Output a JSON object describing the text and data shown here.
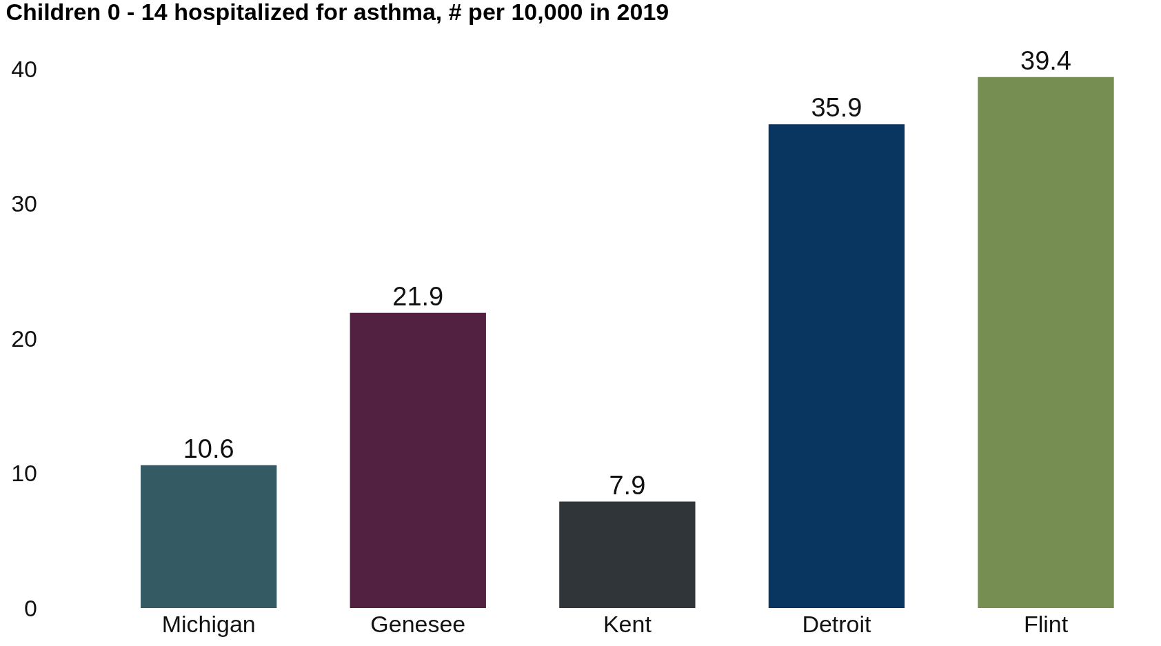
{
  "chart_data": {
    "type": "bar",
    "title": "Children 0 - 14 hospitalized for asthma, # per 10,000 in 2019",
    "categories": [
      "Michigan",
      "Genesee",
      "Kent",
      "Detroit",
      "Flint"
    ],
    "values": [
      10.6,
      21.9,
      7.9,
      35.9,
      39.4
    ],
    "colors": [
      "#345a63",
      "#522142",
      "#2f3539",
      "#083661",
      "#768e52"
    ],
    "ylim": [
      0,
      40
    ],
    "yticks": [
      0,
      10,
      20,
      30,
      40
    ],
    "grid": false,
    "data_labels": true
  }
}
